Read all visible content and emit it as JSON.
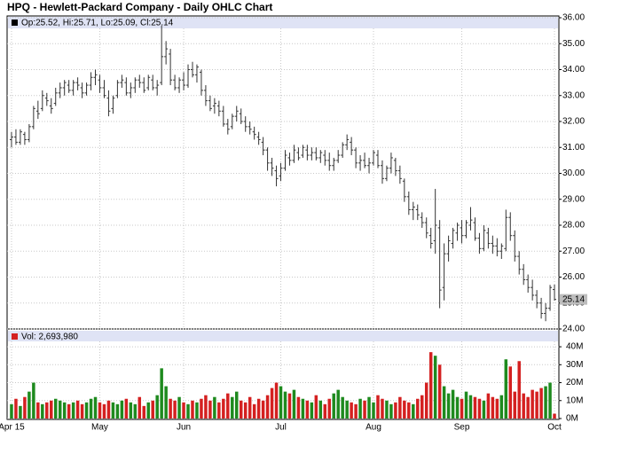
{
  "chart_data": {
    "type": "ohlc",
    "title": "HPQ - Hewlett-Packard Company - Daily OHLC Chart",
    "price_legend": "Op:25.52, Hi:25.71, Lo:25.09, Cl:25.14",
    "volume_legend": "Vol: 2,693,980",
    "bar_color": "#333333",
    "up_color": "#1e8a1e",
    "down_color": "#d42020",
    "grid": true,
    "xlim": [
      -1,
      124
    ],
    "xticks": [
      {
        "value": 0,
        "label": "Apr 15"
      },
      {
        "value": 20,
        "label": "May"
      },
      {
        "value": 39,
        "label": "Jun"
      },
      {
        "value": 61,
        "label": "Jul"
      },
      {
        "value": 82,
        "label": "Aug"
      },
      {
        "value": 102,
        "label": "Sep"
      },
      {
        "value": 123,
        "label": "Oct"
      }
    ],
    "ylim": [
      24,
      36
    ],
    "yticks": [
      {
        "value": 24,
        "label": "24.00"
      },
      {
        "value": 25,
        "label": "25.00"
      },
      {
        "value": 26,
        "label": "26.00"
      },
      {
        "value": 27,
        "label": "27.00"
      },
      {
        "value": 28,
        "label": "28.00"
      },
      {
        "value": 29,
        "label": "29.00"
      },
      {
        "value": 30,
        "label": "30.00"
      },
      {
        "value": 31,
        "label": "31.00"
      },
      {
        "value": 32,
        "label": "32.00"
      },
      {
        "value": 33,
        "label": "33.00"
      },
      {
        "value": 34,
        "label": "34.00"
      },
      {
        "value": 35,
        "label": "35.00"
      },
      {
        "value": 36,
        "label": "36.00"
      }
    ],
    "volume_ylim": [
      0,
      43000000
    ],
    "volume_yticks": [
      {
        "value": 0,
        "label": "0M"
      },
      {
        "value": 10000000,
        "label": "10M"
      },
      {
        "value": 20000000,
        "label": "20M"
      },
      {
        "value": 30000000,
        "label": "30M"
      },
      {
        "value": 40000000,
        "label": "40M"
      }
    ],
    "bars": [
      [
        31.3,
        31.6,
        31.0,
        31.4
      ],
      [
        31.4,
        31.7,
        31.1,
        31.2
      ],
      [
        31.2,
        31.7,
        31.1,
        31.6
      ],
      [
        31.5,
        31.6,
        31.1,
        31.3
      ],
      [
        31.3,
        31.9,
        31.2,
        31.8
      ],
      [
        31.8,
        32.6,
        31.7,
        32.5
      ],
      [
        32.4,
        32.8,
        32.1,
        32.3
      ],
      [
        32.5,
        33.2,
        32.4,
        33.0
      ],
      [
        32.9,
        33.1,
        32.6,
        32.8
      ],
      [
        32.6,
        32.9,
        32.3,
        32.5
      ],
      [
        32.7,
        33.3,
        32.6,
        33.1
      ],
      [
        33.1,
        33.5,
        32.9,
        33.3
      ],
      [
        33.3,
        33.6,
        33.0,
        33.5
      ],
      [
        33.4,
        33.6,
        33.1,
        33.2
      ],
      [
        33.2,
        33.6,
        33.0,
        33.5
      ],
      [
        33.5,
        33.7,
        33.2,
        33.4
      ],
      [
        33.3,
        33.5,
        32.9,
        33.1
      ],
      [
        33.1,
        33.5,
        33.0,
        33.4
      ],
      [
        33.4,
        33.9,
        33.2,
        33.7
      ],
      [
        33.7,
        34.0,
        33.4,
        33.8
      ],
      [
        33.6,
        33.8,
        33.1,
        33.3
      ],
      [
        33.3,
        33.6,
        32.9,
        33.0
      ],
      [
        32.9,
        33.2,
        32.2,
        32.4
      ],
      [
        32.5,
        33.0,
        32.3,
        32.9
      ],
      [
        33.0,
        33.6,
        32.9,
        33.5
      ],
      [
        33.5,
        33.8,
        33.3,
        33.6
      ],
      [
        33.5,
        33.7,
        33.0,
        33.1
      ],
      [
        33.1,
        33.5,
        32.9,
        33.3
      ],
      [
        33.3,
        33.7,
        33.1,
        33.6
      ],
      [
        33.6,
        33.8,
        33.3,
        33.5
      ],
      [
        33.5,
        33.7,
        33.1,
        33.2
      ],
      [
        33.3,
        33.8,
        33.2,
        33.7
      ],
      [
        33.6,
        33.8,
        33.2,
        33.3
      ],
      [
        33.3,
        33.6,
        33.0,
        33.4
      ],
      [
        33.5,
        35.7,
        33.4,
        34.5
      ],
      [
        34.5,
        35.1,
        34.2,
        34.8
      ],
      [
        34.6,
        34.8,
        33.4,
        33.6
      ],
      [
        33.6,
        33.8,
        33.2,
        33.3
      ],
      [
        33.3,
        33.7,
        33.1,
        33.6
      ],
      [
        33.6,
        33.9,
        33.2,
        33.4
      ],
      [
        33.4,
        34.2,
        33.3,
        34.0
      ],
      [
        34.0,
        34.3,
        33.7,
        33.8
      ],
      [
        33.8,
        34.2,
        33.5,
        34.1
      ],
      [
        33.9,
        34.0,
        33.0,
        33.2
      ],
      [
        33.2,
        33.4,
        32.6,
        32.8
      ],
      [
        32.8,
        33.0,
        32.4,
        32.5
      ],
      [
        32.6,
        32.9,
        32.3,
        32.7
      ],
      [
        32.6,
        32.8,
        32.2,
        32.4
      ],
      [
        32.4,
        32.6,
        31.8,
        31.9
      ],
      [
        31.9,
        32.1,
        31.5,
        31.7
      ],
      [
        31.8,
        32.3,
        31.7,
        32.2
      ],
      [
        32.2,
        32.6,
        32.0,
        32.4
      ],
      [
        32.3,
        32.5,
        31.9,
        32.0
      ],
      [
        32.0,
        32.2,
        31.6,
        31.8
      ],
      [
        31.8,
        32.0,
        31.5,
        31.7
      ],
      [
        31.6,
        31.8,
        31.3,
        31.5
      ],
      [
        31.4,
        31.6,
        31.1,
        31.3
      ],
      [
        31.2,
        31.4,
        30.7,
        30.9
      ],
      [
        30.9,
        31.0,
        30.1,
        30.4
      ],
      [
        30.4,
        30.6,
        29.9,
        30.2
      ],
      [
        30.1,
        30.3,
        29.5,
        29.8
      ],
      [
        29.9,
        30.4,
        29.7,
        30.2
      ],
      [
        30.2,
        30.9,
        30.1,
        30.7
      ],
      [
        30.6,
        30.8,
        30.3,
        30.5
      ],
      [
        30.5,
        31.1,
        30.4,
        30.9
      ],
      [
        30.8,
        31.0,
        30.5,
        30.6
      ],
      [
        30.7,
        31.1,
        30.6,
        31.0
      ],
      [
        30.9,
        31.1,
        30.5,
        30.7
      ],
      [
        30.7,
        31.0,
        30.5,
        30.8
      ],
      [
        30.8,
        31.0,
        30.5,
        30.6
      ],
      [
        30.6,
        30.9,
        30.4,
        30.8
      ],
      [
        30.7,
        30.9,
        30.3,
        30.5
      ],
      [
        30.5,
        30.8,
        30.1,
        30.3
      ],
      [
        30.3,
        30.6,
        30.1,
        30.5
      ],
      [
        30.5,
        30.9,
        30.4,
        30.7
      ],
      [
        30.7,
        31.2,
        30.6,
        31.1
      ],
      [
        31.1,
        31.5,
        30.9,
        31.3
      ],
      [
        31.2,
        31.4,
        30.7,
        30.9
      ],
      [
        30.9,
        31.0,
        30.2,
        30.4
      ],
      [
        30.4,
        30.7,
        30.1,
        30.5
      ],
      [
        30.5,
        30.8,
        30.2,
        30.3
      ],
      [
        30.3,
        30.6,
        30.0,
        30.4
      ],
      [
        30.4,
        30.9,
        30.3,
        30.8
      ],
      [
        30.7,
        30.9,
        30.2,
        30.3
      ],
      [
        30.3,
        30.5,
        29.6,
        29.8
      ],
      [
        29.8,
        30.3,
        29.7,
        30.2
      ],
      [
        30.2,
        30.8,
        30.0,
        30.6
      ],
      [
        30.5,
        30.6,
        29.9,
        30.1
      ],
      [
        30.1,
        30.3,
        29.6,
        29.8
      ],
      [
        29.7,
        29.8,
        28.9,
        29.1
      ],
      [
        29.1,
        29.3,
        28.4,
        28.6
      ],
      [
        28.6,
        28.9,
        28.2,
        28.7
      ],
      [
        28.6,
        28.8,
        28.2,
        28.4
      ],
      [
        28.3,
        28.5,
        27.9,
        28.1
      ],
      [
        28.1,
        28.3,
        27.5,
        27.7
      ],
      [
        27.6,
        27.9,
        27.1,
        27.3
      ],
      [
        27.4,
        29.4,
        26.9,
        28.0
      ],
      [
        27.9,
        28.2,
        24.8,
        25.5
      ],
      [
        25.6,
        27.3,
        25.1,
        26.9
      ],
      [
        26.9,
        27.6,
        26.6,
        27.4
      ],
      [
        27.3,
        27.9,
        27.1,
        27.8
      ],
      [
        27.7,
        28.1,
        27.4,
        28.0
      ],
      [
        27.9,
        28.2,
        27.3,
        27.6
      ],
      [
        27.6,
        28.2,
        27.5,
        28.1
      ],
      [
        28.0,
        28.7,
        27.8,
        28.2
      ],
      [
        28.1,
        28.3,
        27.4,
        27.5
      ],
      [
        27.5,
        27.7,
        26.9,
        27.1
      ],
      [
        27.1,
        28.0,
        27.0,
        27.8
      ],
      [
        27.7,
        27.9,
        27.1,
        27.3
      ],
      [
        27.3,
        27.6,
        26.9,
        27.2
      ],
      [
        27.2,
        27.5,
        26.8,
        27.0
      ],
      [
        27.0,
        27.3,
        26.7,
        27.2
      ],
      [
        27.1,
        28.6,
        27.0,
        28.3
      ],
      [
        28.3,
        28.5,
        27.4,
        27.6
      ],
      [
        27.6,
        27.8,
        26.6,
        26.8
      ],
      [
        26.8,
        27.0,
        26.1,
        26.3
      ],
      [
        26.3,
        26.5,
        25.7,
        25.9
      ],
      [
        25.9,
        26.1,
        25.4,
        25.6
      ],
      [
        25.6,
        25.9,
        25.1,
        25.3
      ],
      [
        25.3,
        25.5,
        24.8,
        25.0
      ],
      [
        25.0,
        25.2,
        24.4,
        24.6
      ],
      [
        24.6,
        25.0,
        24.3,
        24.8
      ],
      [
        24.8,
        25.7,
        24.7,
        25.6
      ],
      [
        25.52,
        25.71,
        25.09,
        25.14
      ]
    ],
    "volume": [
      8000000.0,
      11000000.0,
      7000000.0,
      12000000.0,
      15000000.0,
      20000000.0,
      9000000.0,
      8000000.0,
      9000000.0,
      10000000.0,
      11000000.0,
      10000000.0,
      9000000.0,
      8000000.0,
      9000000.0,
      10000000.0,
      8000000.0,
      9000000.0,
      11000000.0,
      12000000.0,
      9000000.0,
      8000000.0,
      10000000.0,
      9000000.0,
      8000000.0,
      10000000.0,
      11000000.0,
      9000000.0,
      8000000.0,
      12000000.0,
      7000000.0,
      9000000.0,
      10000000.0,
      13000000.0,
      28000000.0,
      18000000.0,
      11000000.0,
      10000000.0,
      12000000.0,
      9000000.0,
      8000000.0,
      10000000.0,
      9000000.0,
      11000000.0,
      13000000.0,
      10000000.0,
      12000000.0,
      9000000.0,
      11000000.0,
      14000000.0,
      12000000.0,
      15000000.0,
      10000000.0,
      9000000.0,
      12000000.0,
      8000000.0,
      11000000.0,
      10000000.0,
      13000000.0,
      17000000.0,
      20000000.0,
      18000000.0,
      15000000.0,
      14000000.0,
      16000000.0,
      12000000.0,
      11000000.0,
      10000000.0,
      9000000.0,
      13000000.0,
      10000000.0,
      8000000.0,
      11000000.0,
      14000000.0,
      16000000.0,
      12000000.0,
      10000000.0,
      9000000.0,
      8000000.0,
      11000000.0,
      10000000.0,
      12000000.0,
      9000000.0,
      13000000.0,
      11000000.0,
      10000000.0,
      8000000.0,
      9000000.0,
      12000000.0,
      10000000.0,
      9000000.0,
      8000000.0,
      11000000.0,
      13000000.0,
      20000000.0,
      37000000.0,
      35000000.0,
      30000000.0,
      18000000.0,
      14000000.0,
      16000000.0,
      12000000.0,
      11000000.0,
      15000000.0,
      13000000.0,
      12000000.0,
      11000000.0,
      10000000.0,
      14000000.0,
      12000000.0,
      11000000.0,
      13000000.0,
      33000000.0,
      29000000.0,
      15000000.0,
      32000000.0,
      14000000.0,
      12000000.0,
      16000000.0,
      15000000.0,
      17000000.0,
      18000000.0,
      20000000.0,
      2693980
    ]
  }
}
